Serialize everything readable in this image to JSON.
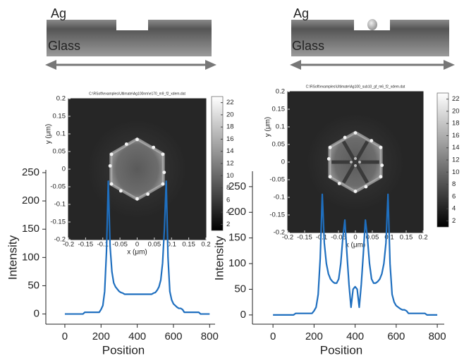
{
  "schematics": [
    {
      "metal": "Ag",
      "substrate": "Glass"
    },
    {
      "metal": "Ag",
      "substrate": "Glass"
    }
  ],
  "chart_data": [
    {
      "type": "line",
      "xlabel": "Position",
      "ylabel": "Intensity",
      "color": "#1f6fbf",
      "xlim": [
        -105,
        830
      ],
      "ylim": [
        -18,
        255
      ],
      "xticks": [
        0,
        200,
        400,
        600,
        800
      ],
      "yticks": [
        0,
        50,
        100,
        150,
        200,
        250
      ],
      "x": [
        0,
        10,
        20,
        30,
        40,
        50,
        60,
        70,
        80,
        90,
        100,
        110,
        120,
        130,
        140,
        150,
        160,
        170,
        180,
        190,
        200,
        210,
        220,
        230,
        240,
        250,
        260,
        270,
        280,
        290,
        300,
        310,
        320,
        330,
        340,
        350,
        360,
        370,
        380,
        390,
        400,
        410,
        420,
        430,
        440,
        450,
        460,
        470,
        480,
        490,
        500,
        510,
        520,
        530,
        540,
        550,
        560,
        570,
        580,
        590,
        600,
        610,
        620,
        630,
        640,
        650,
        660,
        670,
        680,
        690,
        700,
        710,
        720,
        730,
        740,
        750,
        760,
        770,
        780,
        790,
        800
      ],
      "values": [
        0,
        0,
        0,
        0,
        0,
        0,
        0,
        0,
        0,
        0,
        0,
        3,
        3,
        3,
        3,
        3,
        3,
        3,
        3,
        3,
        8,
        15,
        40,
        110,
        235,
        120,
        75,
        55,
        48,
        44,
        40,
        38,
        37,
        35,
        35,
        35,
        35,
        35,
        35,
        35,
        35,
        35,
        35,
        35,
        35,
        35,
        35,
        35,
        35,
        37,
        38,
        42,
        48,
        60,
        90,
        150,
        235,
        100,
        40,
        25,
        18,
        15,
        12,
        10,
        10,
        8,
        3,
        3,
        3,
        3,
        3,
        3,
        3,
        3,
        3,
        0,
        0,
        0,
        0,
        0,
        0
      ]
    },
    {
      "type": "line",
      "xlabel": "Position",
      "ylabel": "Intensity",
      "color": "#1f6fbf",
      "xlim": [
        -100,
        834
      ],
      "ylim": [
        -18,
        280
      ],
      "xticks": [
        0,
        200,
        400,
        600,
        800
      ],
      "yticks": [
        0,
        50,
        100,
        150,
        200,
        250
      ],
      "x": [
        0,
        10,
        20,
        30,
        40,
        50,
        60,
        70,
        80,
        90,
        100,
        110,
        120,
        130,
        140,
        150,
        160,
        170,
        180,
        190,
        200,
        210,
        220,
        230,
        240,
        250,
        260,
        270,
        280,
        290,
        300,
        310,
        320,
        330,
        340,
        350,
        360,
        370,
        380,
        390,
        400,
        410,
        420,
        430,
        440,
        450,
        460,
        470,
        480,
        490,
        500,
        510,
        520,
        530,
        540,
        550,
        560,
        570,
        580,
        590,
        600,
        610,
        620,
        630,
        640,
        650,
        660,
        670,
        680,
        690,
        700,
        710,
        720,
        730,
        740,
        750,
        760,
        770,
        780,
        790,
        800
      ],
      "values": [
        0,
        0,
        0,
        0,
        0,
        0,
        0,
        0,
        0,
        0,
        0,
        3,
        3,
        3,
        3,
        3,
        3,
        3,
        3,
        3,
        8,
        15,
        40,
        110,
        235,
        140,
        100,
        80,
        70,
        65,
        62,
        62,
        70,
        100,
        150,
        185,
        120,
        60,
        15,
        50,
        55,
        50,
        15,
        60,
        120,
        185,
        150,
        100,
        70,
        62,
        62,
        65,
        70,
        80,
        100,
        140,
        235,
        100,
        40,
        25,
        18,
        15,
        12,
        10,
        10,
        8,
        3,
        3,
        3,
        3,
        3,
        3,
        3,
        3,
        3,
        0,
        0,
        0,
        0,
        0,
        0
      ]
    },
    {
      "type": "heatmap",
      "title": "C:\\RSoft\\examples\\Ultimate\\Ag100nm\\e170_m9_f2_xdem.dat",
      "xlabel": "x (μm)",
      "ylabel": "y (μm)",
      "xlim": [
        -0.2,
        0.2
      ],
      "ylim": [
        -0.2,
        0.2
      ],
      "xticks": [
        -0.2,
        -0.15,
        -0.1,
        -0.05,
        0,
        0.05,
        0.1,
        0.15,
        0.2
      ],
      "yticks": [
        -0.2,
        -0.15,
        -0.1,
        -0.05,
        0,
        0.05,
        0.1,
        0.15,
        0.2
      ],
      "clim": [
        1,
        23
      ],
      "cticks": [
        2,
        4,
        6,
        8,
        10,
        12,
        14,
        16,
        18,
        20,
        22
      ]
    },
    {
      "type": "heatmap",
      "title": "C:\\RSoft\\examples\\Ultimate\\Ag100_sub10_gf_m6_f2_xdem.dat",
      "xlabel": "x (μm)",
      "ylabel": "y (μm)",
      "xlim": [
        -0.2,
        0.2
      ],
      "ylim": [
        -0.2,
        0.2
      ],
      "xticks": [
        -0.2,
        -0.15,
        -0.1,
        -0.05,
        0,
        0.05,
        0.1,
        0.15,
        0.2
      ],
      "yticks": [
        -0.2,
        -0.15,
        -0.1,
        -0.05,
        0,
        0.05,
        0.1,
        0.15,
        0.2
      ],
      "clim": [
        1,
        23
      ],
      "cticks": [
        2,
        4,
        6,
        8,
        10,
        12,
        14,
        16,
        18,
        20,
        22
      ]
    }
  ]
}
